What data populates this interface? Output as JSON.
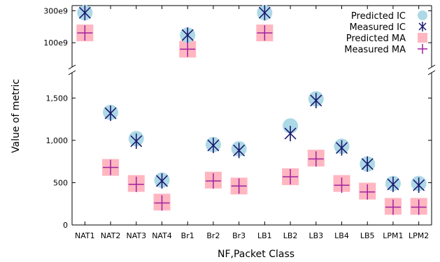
{
  "chart_data": {
    "type": "scatter",
    "xlabel": "NF,Packet Class",
    "ylabel": "Value of metric",
    "categories": [
      "NAT1",
      "NAT2",
      "NAT3",
      "NAT4",
      "Br1",
      "Br2",
      "Br3",
      "LB1",
      "LB2",
      "LB3",
      "LB4",
      "LB5",
      "LPM1",
      "LPM2"
    ],
    "y_axis_segments": {
      "lower": {
        "range": [
          0,
          1750
        ],
        "ticks": [
          0,
          500,
          1000,
          1500
        ],
        "tick_labels": [
          "0",
          "500",
          "1,000",
          "1,500"
        ]
      },
      "upper": {
        "range": [
          50000000000,
          310000000000
        ],
        "ticks": [
          100000000000,
          300000000000
        ],
        "tick_labels": [
          "100e9",
          "300e9"
        ]
      }
    },
    "legend_position": "top-right",
    "series": [
      {
        "name": "Predicted IC",
        "marker": "circle",
        "color": "#add8e6",
        "values": [
          280000000000,
          1330,
          1020,
          530,
          130000000000,
          950,
          900,
          280000000000,
          1170,
          1490,
          930,
          720,
          490,
          490
        ]
      },
      {
        "name": "Measured IC",
        "marker": "asterisk",
        "color": "#191970",
        "values": [
          280000000000,
          1320,
          990,
          520,
          130000000000,
          940,
          880,
          280000000000,
          1080,
          1470,
          910,
          720,
          480,
          470
        ]
      },
      {
        "name": "Predicted MA",
        "marker": "square",
        "color": "#ffb6c1",
        "values": [
          140000000000,
          680,
          490,
          270,
          80000000000,
          530,
          460,
          140000000000,
          570,
          790,
          490,
          400,
          220,
          220
        ]
      },
      {
        "name": "Measured MA",
        "marker": "plus",
        "color": "#a020a0",
        "values": [
          140000000000,
          680,
          480,
          260,
          80000000000,
          520,
          460,
          140000000000,
          570,
          780,
          470,
          390,
          210,
          210
        ]
      }
    ]
  }
}
